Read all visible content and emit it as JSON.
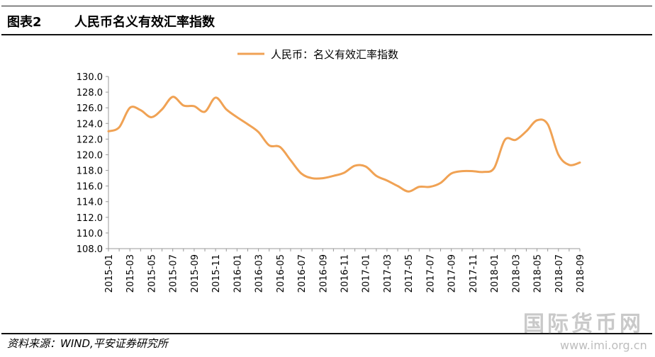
{
  "header": {
    "figure_label": "图表2",
    "title": "人民币名义有效汇率指数"
  },
  "source_text": "资料来源：WIND,平安证券研究所",
  "watermark": {
    "text": "国际货币网",
    "url": "www.imi.org.cn"
  },
  "colors": {
    "series": "#f0a254",
    "axis": "#999999",
    "text": "#000000"
  },
  "chart_data": {
    "type": "line",
    "title": "",
    "xlabel": "",
    "ylabel": "",
    "ylim": [
      108.0,
      130.0
    ],
    "y_ticks": [
      "130.0",
      "128.0",
      "126.0",
      "124.0",
      "122.0",
      "120.0",
      "118.0",
      "116.0",
      "114.0",
      "112.0",
      "110.0",
      "108.0"
    ],
    "x_ticks": [
      "2015-01",
      "2015-03",
      "2015-05",
      "2015-07",
      "2015-09",
      "2015-11",
      "2016-01",
      "2016-03",
      "2016-05",
      "2016-07",
      "2016-09",
      "2016-11",
      "2017-01",
      "2017-03",
      "2017-05",
      "2017-07",
      "2017-09",
      "2017-11",
      "2018-01",
      "2018-03",
      "2018-05",
      "2018-07",
      "2018-09"
    ],
    "grid": false,
    "legend_position": "top-center",
    "series": [
      {
        "name": "人民币：名义有效汇率指数",
        "x": [
          "2015-01",
          "2015-02",
          "2015-03",
          "2015-04",
          "2015-05",
          "2015-06",
          "2015-07",
          "2015-08",
          "2015-09",
          "2015-10",
          "2015-11",
          "2015-12",
          "2016-01",
          "2016-02",
          "2016-03",
          "2016-04",
          "2016-05",
          "2016-06",
          "2016-07",
          "2016-08",
          "2016-09",
          "2016-10",
          "2016-11",
          "2016-12",
          "2017-01",
          "2017-02",
          "2017-03",
          "2017-04",
          "2017-05",
          "2017-06",
          "2017-07",
          "2017-08",
          "2017-09",
          "2017-10",
          "2017-11",
          "2017-12",
          "2018-01",
          "2018-02",
          "2018-03",
          "2018-04",
          "2018-05",
          "2018-06",
          "2018-07",
          "2018-08",
          "2018-09"
        ],
        "values": [
          123.0,
          123.5,
          126.0,
          125.7,
          124.8,
          125.8,
          127.4,
          126.3,
          126.2,
          125.5,
          127.3,
          125.8,
          124.8,
          123.9,
          122.9,
          121.2,
          121.0,
          119.3,
          117.6,
          117.0,
          117.0,
          117.3,
          117.7,
          118.6,
          118.5,
          117.3,
          116.7,
          116.0,
          115.3,
          115.9,
          115.9,
          116.4,
          117.6,
          117.9,
          117.9,
          117.8,
          118.3,
          121.9,
          121.9,
          123.0,
          124.4,
          123.9,
          120.0,
          118.7,
          119.0
        ]
      }
    ]
  }
}
